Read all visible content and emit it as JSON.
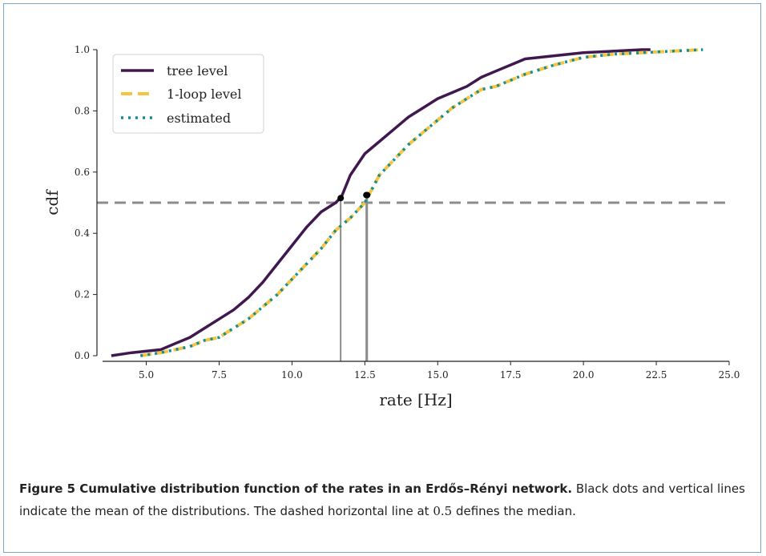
{
  "colors": {
    "tree": "#40184f",
    "loop": "#f5c542",
    "estimated": "#138f8f",
    "median": "#8c8c8c",
    "mean_line": "#8c8c8c",
    "dot": "#000000"
  },
  "chart_data": {
    "type": "line",
    "xlabel": "rate [Hz]",
    "ylabel": "cdf",
    "xlim": [
      3.5,
      25.0
    ],
    "ylim": [
      0.0,
      1.0
    ],
    "xticks": [
      "5.0",
      "7.5",
      "10.0",
      "12.5",
      "15.0",
      "17.5",
      "20.0",
      "22.5",
      "25.0"
    ],
    "yticks": [
      "0.0",
      "0.2",
      "0.4",
      "0.6",
      "0.8",
      "1.0"
    ],
    "legend_position": "top-left",
    "grid": false,
    "median_line": 0.5,
    "series": [
      {
        "name": "tree level",
        "style": "solid",
        "x": [
          3.8,
          4.5,
          5.5,
          6.0,
          6.5,
          7.0,
          7.5,
          8.0,
          8.5,
          9.0,
          9.5,
          10.0,
          10.5,
          11.0,
          11.5,
          11.7,
          12.0,
          12.5,
          13.0,
          13.5,
          14.0,
          14.5,
          15.0,
          15.5,
          16.0,
          16.5,
          17.0,
          17.5,
          18.0,
          19.0,
          20.0,
          21.0,
          22.0,
          22.3
        ],
        "y": [
          0.0,
          0.01,
          0.02,
          0.04,
          0.06,
          0.09,
          0.12,
          0.15,
          0.19,
          0.24,
          0.3,
          0.36,
          0.42,
          0.47,
          0.5,
          0.52,
          0.59,
          0.66,
          0.7,
          0.74,
          0.78,
          0.81,
          0.84,
          0.86,
          0.88,
          0.91,
          0.93,
          0.95,
          0.97,
          0.98,
          0.99,
          0.995,
          1.0,
          1.0
        ]
      },
      {
        "name": "1-loop level",
        "style": "dashed",
        "x": [
          4.8,
          5.5,
          6.0,
          6.5,
          7.0,
          7.5,
          8.0,
          8.5,
          9.0,
          9.5,
          10.0,
          10.5,
          11.0,
          11.5,
          12.0,
          12.5,
          13.0,
          13.5,
          14.0,
          14.5,
          15.0,
          15.5,
          16.0,
          16.5,
          17.0,
          17.5,
          18.0,
          19.0,
          20.0,
          21.0,
          22.0,
          23.0,
          24.1
        ],
        "y": [
          0.0,
          0.01,
          0.02,
          0.03,
          0.05,
          0.06,
          0.09,
          0.12,
          0.16,
          0.2,
          0.25,
          0.3,
          0.35,
          0.41,
          0.45,
          0.5,
          0.59,
          0.64,
          0.69,
          0.73,
          0.77,
          0.81,
          0.84,
          0.87,
          0.88,
          0.9,
          0.92,
          0.95,
          0.975,
          0.985,
          0.99,
          0.995,
          1.0
        ]
      },
      {
        "name": "estimated",
        "style": "dotted",
        "x": [
          4.8,
          5.5,
          6.0,
          6.5,
          7.0,
          7.5,
          8.0,
          8.5,
          9.0,
          9.5,
          10.0,
          10.5,
          11.0,
          11.5,
          12.0,
          12.5,
          13.0,
          13.5,
          14.0,
          14.5,
          15.0,
          15.5,
          16.0,
          16.5,
          17.0,
          17.5,
          18.0,
          19.0,
          20.0,
          21.0,
          22.0,
          23.0,
          24.1
        ],
        "y": [
          0.0,
          0.01,
          0.02,
          0.03,
          0.05,
          0.06,
          0.09,
          0.12,
          0.16,
          0.2,
          0.25,
          0.3,
          0.35,
          0.41,
          0.45,
          0.5,
          0.59,
          0.64,
          0.69,
          0.73,
          0.77,
          0.81,
          0.84,
          0.87,
          0.88,
          0.9,
          0.92,
          0.95,
          0.975,
          0.985,
          0.99,
          0.995,
          1.0
        ]
      }
    ],
    "means": [
      {
        "x": 11.67,
        "y": 0.515
      },
      {
        "x": 12.55,
        "y": 0.525
      },
      {
        "x": 12.58,
        "y": 0.525
      }
    ]
  },
  "caption": {
    "bold": "Figure 5 Cumulative distribution function of the rates in an Erdős–Rényi network.",
    "text1": " Black dots and vertical lines indicate the mean of the distributions. The dashed horizontal line at ",
    "math": "0.5",
    "text2": " defines the median."
  }
}
